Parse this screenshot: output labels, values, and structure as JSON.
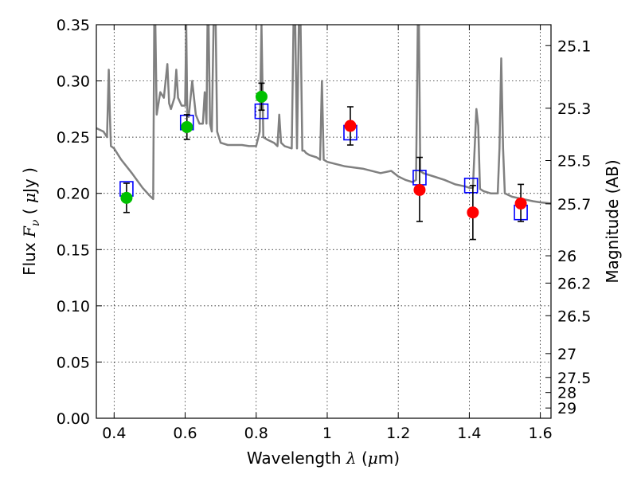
{
  "chart_data": {
    "type": "scatter",
    "title": "",
    "xlabel": {
      "prefix": "Wavelength",
      "symbol": "λ",
      "unit_open": "(",
      "unit_mu": "μ",
      "unit_rest": "m)"
    },
    "ylabel": {
      "prefix": "Flux",
      "symbol": "F",
      "subscript": "ν",
      "unit_open": "(",
      "unit_mu": "μ",
      "unit_rest": "Jy )"
    },
    "y2label": "Magnitude (AB)",
    "xlim": [
      0.35,
      1.63
    ],
    "ylim": [
      0.0,
      0.35
    ],
    "grid": true,
    "x_ticks": [
      0.4,
      0.6,
      0.8,
      1.0,
      1.2,
      1.4,
      1.6
    ],
    "x_tick_labels": [
      "0.4",
      "0.6",
      "0.8",
      "1",
      "1.2",
      "1.4",
      "1.6"
    ],
    "y_ticks": [
      0.0,
      0.05,
      0.1,
      0.15,
      0.2,
      0.25,
      0.3,
      0.35
    ],
    "y_tick_labels": [
      "0.00",
      "0.05",
      "0.10",
      "0.15",
      "0.20",
      "0.25",
      "0.30",
      "0.35"
    ],
    "y2_ticks": [
      {
        "label": "25.1",
        "flux": 0.3314
      },
      {
        "label": "25.3",
        "flux": 0.2757
      },
      {
        "label": "25.5",
        "flux": 0.2292
      },
      {
        "label": "25.7",
        "flux": 0.1907
      },
      {
        "label": "26",
        "flux": 0.1445
      },
      {
        "label": "26.2",
        "flux": 0.1202
      },
      {
        "label": "26.5",
        "flux": 0.0912
      },
      {
        "label": "27",
        "flux": 0.0575
      },
      {
        "label": "27.5",
        "flux": 0.0363
      },
      {
        "label": "28",
        "flux": 0.0229
      },
      {
        "label": "29",
        "flux": 0.0091
      }
    ],
    "series": [
      {
        "kind": "spectrum",
        "color": "#808080",
        "x": [
          0.35,
          0.37,
          0.38,
          0.385,
          0.388,
          0.391,
          0.4,
          0.42,
          0.45,
          0.48,
          0.5,
          0.51,
          0.513,
          0.516,
          0.52,
          0.53,
          0.54,
          0.55,
          0.555,
          0.56,
          0.57,
          0.575,
          0.58,
          0.59,
          0.6,
          0.603,
          0.606,
          0.61,
          0.62,
          0.63,
          0.64,
          0.65,
          0.655,
          0.66,
          0.663,
          0.666,
          0.67,
          0.675,
          0.68,
          0.683,
          0.686,
          0.69,
          0.7,
          0.72,
          0.74,
          0.76,
          0.78,
          0.8,
          0.81,
          0.815,
          0.82,
          0.83,
          0.85,
          0.86,
          0.865,
          0.87,
          0.88,
          0.9,
          0.905,
          0.91,
          0.915,
          0.92,
          0.925,
          0.93,
          0.935,
          0.94,
          0.95,
          0.97,
          0.98,
          0.985,
          0.99,
          1.0,
          1.05,
          1.1,
          1.15,
          1.18,
          1.2,
          1.22,
          1.24,
          1.25,
          1.255,
          1.258,
          1.262,
          1.27,
          1.3,
          1.33,
          1.36,
          1.39,
          1.4,
          1.41,
          1.415,
          1.42,
          1.425,
          1.43,
          1.44,
          1.46,
          1.48,
          1.485,
          1.49,
          1.495,
          1.5,
          1.52,
          1.55,
          1.58,
          1.6,
          1.63
        ],
        "y": [
          0.258,
          0.255,
          0.25,
          0.31,
          0.27,
          0.242,
          0.24,
          0.23,
          0.218,
          0.205,
          0.198,
          0.195,
          0.35,
          0.35,
          0.27,
          0.29,
          0.285,
          0.315,
          0.28,
          0.275,
          0.285,
          0.31,
          0.285,
          0.278,
          0.278,
          0.35,
          0.27,
          0.268,
          0.3,
          0.27,
          0.262,
          0.262,
          0.29,
          0.262,
          0.35,
          0.35,
          0.262,
          0.255,
          0.35,
          0.35,
          0.35,
          0.255,
          0.245,
          0.243,
          0.243,
          0.243,
          0.242,
          0.242,
          0.255,
          0.35,
          0.25,
          0.248,
          0.245,
          0.242,
          0.27,
          0.245,
          0.242,
          0.24,
          0.35,
          0.35,
          0.24,
          0.35,
          0.35,
          0.238,
          0.238,
          0.236,
          0.234,
          0.232,
          0.23,
          0.3,
          0.23,
          0.228,
          0.224,
          0.222,
          0.218,
          0.22,
          0.215,
          0.212,
          0.21,
          0.212,
          0.35,
          0.35,
          0.22,
          0.218,
          0.215,
          0.212,
          0.208,
          0.206,
          0.205,
          0.205,
          0.24,
          0.275,
          0.26,
          0.204,
          0.202,
          0.2,
          0.2,
          0.24,
          0.32,
          0.24,
          0.2,
          0.197,
          0.195,
          0.193,
          0.192,
          0.191
        ]
      },
      {
        "kind": "model_boxes",
        "color": "#0000ff",
        "x": [
          0.435,
          0.605,
          0.815,
          1.065,
          1.26,
          1.405,
          1.545
        ],
        "y": [
          0.204,
          0.263,
          0.273,
          0.254,
          0.214,
          0.207,
          0.183
        ]
      },
      {
        "kind": "measured_points",
        "x": [
          0.435,
          0.605,
          0.815,
          1.065,
          1.26,
          1.41,
          1.545
        ],
        "y": [
          0.196,
          0.259,
          0.286,
          0.26,
          0.203,
          0.183,
          0.191
        ],
        "yerr_low": [
          0.183,
          0.248,
          0.274,
          0.243,
          0.175,
          0.159,
          0.175
        ],
        "yerr_high": [
          0.209,
          0.27,
          0.298,
          0.277,
          0.232,
          0.207,
          0.208
        ],
        "colors": [
          "#00c000",
          "#00c000",
          "#00c000",
          "#ff0000",
          "#ff0000",
          "#ff0000",
          "#ff0000"
        ]
      }
    ]
  }
}
